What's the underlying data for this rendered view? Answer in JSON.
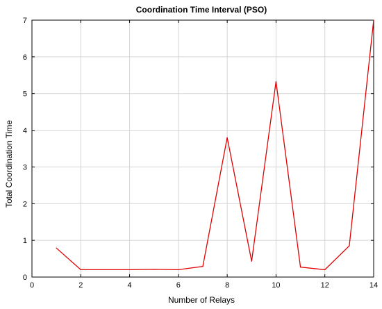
{
  "chart_data": {
    "type": "line",
    "title": "Coordination Time Interval (PSO)",
    "xlabel": "Number of Relays",
    "ylabel": "Total Coordination Time",
    "xlim": [
      0,
      14
    ],
    "ylim": [
      0,
      7
    ],
    "xticks": [
      0,
      2,
      4,
      6,
      8,
      10,
      12,
      14
    ],
    "yticks": [
      0,
      1,
      2,
      3,
      4,
      5,
      6,
      7
    ],
    "grid": true,
    "series": [
      {
        "color": "#e00000",
        "x": [
          1,
          2,
          3,
          4,
          5,
          6,
          7,
          8,
          9,
          10,
          11,
          12,
          13,
          14
        ],
        "y": [
          0.79,
          0.2,
          0.2,
          0.2,
          0.21,
          0.2,
          0.29,
          3.8,
          0.43,
          5.33,
          0.27,
          0.2,
          0.85,
          7.0
        ]
      }
    ]
  }
}
